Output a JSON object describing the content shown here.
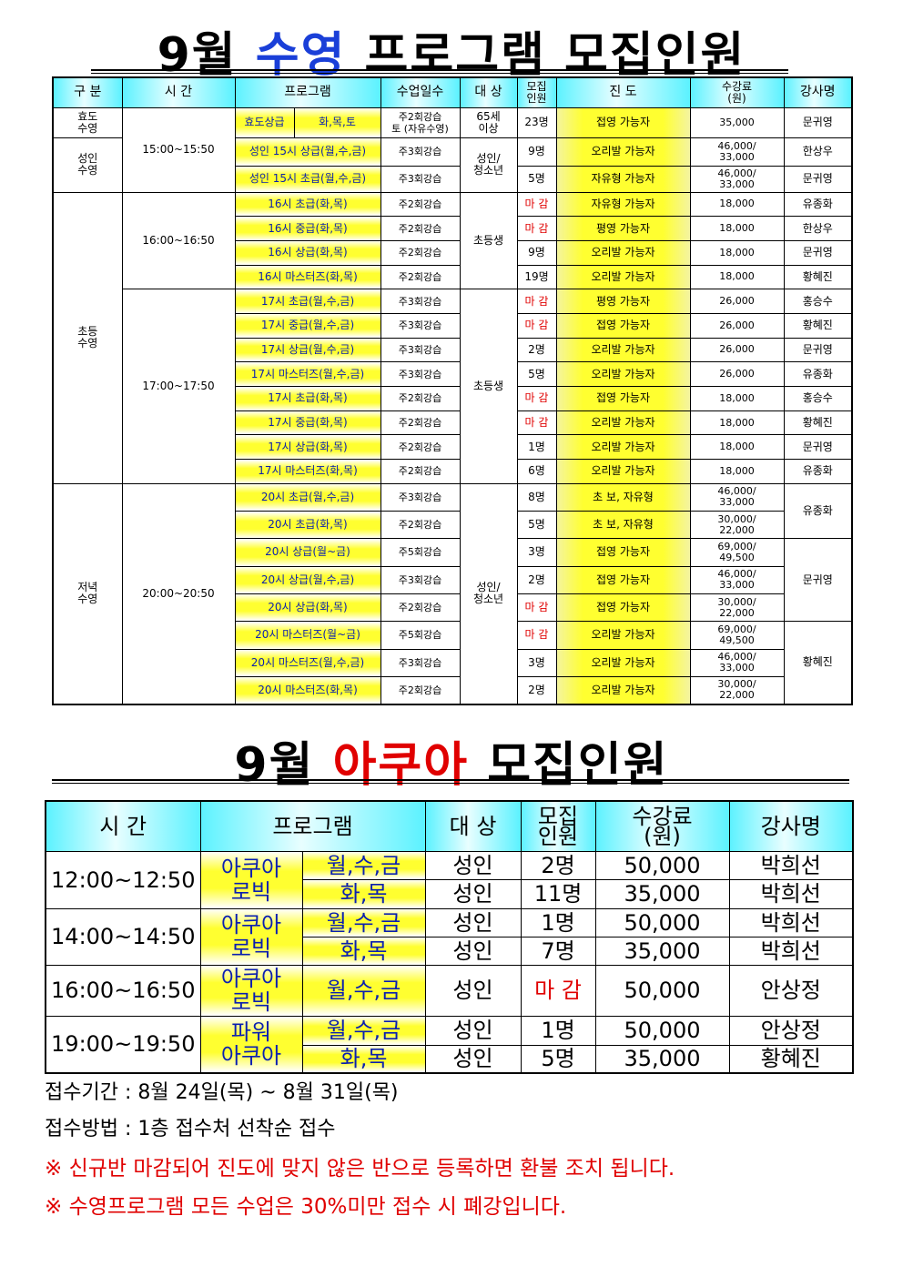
{
  "title1": {
    "month": "9월",
    "highlight": "수영",
    "rest": "프로그램 모집인원",
    "highlight_color": "#1a3fd8"
  },
  "swim_table": {
    "headers": [
      "구 분",
      "시 간",
      "프로그램",
      "수업일수",
      "대 상",
      "모집\n인원",
      "진 도",
      "수강료\n(원)",
      "강사명"
    ],
    "rows": [
      {
        "category": "효도\n수영",
        "time": "15:00~15:50",
        "program": "효도상급",
        "program_days": "화,목,토",
        "days": "주2회강습\n토 (자유수영)",
        "target": "65세\n이상",
        "count": "23명",
        "progress": "접영 가능자",
        "fee": "35,000",
        "instructor": "문귀영"
      },
      {
        "category": "성인\n수영",
        "time": null,
        "program": "성인 15시 상급(월,수,금)",
        "days": "주3회강습",
        "target": "성인/\n청소년",
        "count": "9명",
        "progress": "오리발 가능자",
        "fee": "46,000/\n33,000",
        "instructor": "한상우"
      },
      {
        "category": null,
        "time": null,
        "program": "성인 15시 초급(월,수,금)",
        "days": "주3회강습",
        "target": null,
        "count": "5명",
        "progress": "자유형 가능자",
        "fee": "46,000/\n33,000",
        "instructor": "문귀영"
      },
      {
        "category": "초등\n수영",
        "time": "16:00~16:50",
        "program": "16시 초급(화,목)",
        "days": "주2회강습",
        "target": "초등생",
        "count": "마 감",
        "progress": "자유형 가능자",
        "fee": "18,000",
        "instructor": "유종화"
      },
      {
        "category": null,
        "time": null,
        "program": "16시 중급(화,목)",
        "days": "주2회강습",
        "target": null,
        "count": "마 감",
        "progress": "평영 가능자",
        "fee": "18,000",
        "instructor": "한상우"
      },
      {
        "category": null,
        "time": null,
        "program": "16시 상급(화,목)",
        "days": "주2회강습",
        "target": null,
        "count": "9명",
        "progress": "오리발 가능자",
        "fee": "18,000",
        "instructor": "문귀영"
      },
      {
        "category": null,
        "time": null,
        "program": "16시 마스터즈(화,목)",
        "days": "주2회강습",
        "target": null,
        "count": "19명",
        "progress": "오리발 가능자",
        "fee": "18,000",
        "instructor": "황혜진"
      },
      {
        "category": null,
        "time": "17:00~17:50",
        "program": "17시 초급(월,수,금)",
        "days": "주3회강습",
        "target": "초등생",
        "count": "마 감",
        "progress": "평영 가능자",
        "fee": "26,000",
        "instructor": "홍승수"
      },
      {
        "category": null,
        "time": null,
        "program": "17시 중급(월,수,금)",
        "days": "주3회강습",
        "target": null,
        "count": "마 감",
        "progress": "접영 가능자",
        "fee": "26,000",
        "instructor": "황혜진"
      },
      {
        "category": null,
        "time": null,
        "program": "17시 상급(월,수,금)",
        "days": "주3회강습",
        "target": null,
        "count": "2명",
        "progress": "오리발 가능자",
        "fee": "26,000",
        "instructor": "문귀영"
      },
      {
        "category": null,
        "time": null,
        "program": "17시 마스터즈(월,수,금)",
        "days": "주3회강습",
        "target": null,
        "count": "5명",
        "progress": "오리발 가능자",
        "fee": "26,000",
        "instructor": "유종화"
      },
      {
        "category": null,
        "time": null,
        "program": "17시 초급(화,목)",
        "days": "주2회강습",
        "target": null,
        "count": "마 감",
        "progress": "접영 가능자",
        "fee": "18,000",
        "instructor": "홍승수"
      },
      {
        "category": null,
        "time": null,
        "program": "17시 중급(화,목)",
        "days": "주2회강습",
        "target": null,
        "count": "마 감",
        "progress": "오리발 가능자",
        "fee": "18,000",
        "instructor": "황혜진"
      },
      {
        "category": null,
        "time": null,
        "program": "17시 상급(화,목)",
        "days": "주2회강습",
        "target": null,
        "count": "1명",
        "progress": "오리발 가능자",
        "fee": "18,000",
        "instructor": "문귀영"
      },
      {
        "category": null,
        "time": null,
        "program": "17시 마스터즈(화,목)",
        "days": "주2회강습",
        "target": null,
        "count": "6명",
        "progress": "오리발 가능자",
        "fee": "18,000",
        "instructor": "유종화"
      },
      {
        "category": "저녁\n수영",
        "time": "20:00~20:50",
        "program": "20시 초급(월,수,금)",
        "days": "주3회강습",
        "target": "성인/\n청소년",
        "count": "8명",
        "progress": "초 보, 자유형",
        "fee": "46,000/\n33,000",
        "instructor": "유종화"
      },
      {
        "category": null,
        "time": null,
        "program": "20시 초급(화,목)",
        "days": "주2회강습",
        "target": null,
        "count": "5명",
        "progress": "초 보, 자유형",
        "fee": "30,000/\n22,000",
        "instructor": null
      },
      {
        "category": null,
        "time": null,
        "program": "20시 상급(월~금)",
        "days": "주5회강습",
        "target": null,
        "count": "3명",
        "progress": "접영 가능자",
        "fee": "69,000/\n49,500",
        "instructor": "문귀영"
      },
      {
        "category": null,
        "time": null,
        "program": "20시 상급(월,수,금)",
        "days": "주3회강습",
        "target": null,
        "count": "2명",
        "progress": "접영 가능자",
        "fee": "46,000/\n33,000",
        "instructor": null
      },
      {
        "category": null,
        "time": null,
        "program": "20시 상급(화,목)",
        "days": "주2회강습",
        "target": null,
        "count": "마 감",
        "progress": "접영 가능자",
        "fee": "30,000/\n22,000",
        "instructor": null
      },
      {
        "category": null,
        "time": null,
        "program": "20시 마스터즈(월~금)",
        "days": "주5회강습",
        "target": null,
        "count": "마 감",
        "progress": "오리발 가능자",
        "fee": "69,000/\n49,500",
        "instructor": "황혜진"
      },
      {
        "category": null,
        "time": null,
        "program": "20시 마스터즈(월,수,금)",
        "days": "주3회강습",
        "target": null,
        "count": "3명",
        "progress": "오리발 가능자",
        "fee": "46,000/\n33,000",
        "instructor": null
      },
      {
        "category": null,
        "time": null,
        "program": "20시 마스터즈(화,목)",
        "days": "주2회강습",
        "target": null,
        "count": "2명",
        "progress": "오리발 가능자",
        "fee": "30,000/\n22,000",
        "instructor": null
      }
    ]
  },
  "title2": {
    "month": "9월",
    "highlight": "아쿠아",
    "rest": "모집인원",
    "highlight_color": "#e00000"
  },
  "aqua_table": {
    "headers": [
      "시   간",
      "프로그램",
      "대 상",
      "모집\n인원",
      "수강료\n(원)",
      "강사명"
    ],
    "rows": [
      {
        "time": "12:00~12:50",
        "program": "아쿠아\n로빅",
        "days": "월,수,금",
        "target": "성인",
        "count": "2명",
        "fee": "50,000",
        "instructor": "박희선"
      },
      {
        "time": null,
        "program": null,
        "days": "화,목",
        "target": "성인",
        "count": "11명",
        "fee": "35,000",
        "instructor": "박희선"
      },
      {
        "time": "14:00~14:50",
        "program": "아쿠아\n로빅",
        "days": "월,수,금",
        "target": "성인",
        "count": "1명",
        "fee": "50,000",
        "instructor": "박희선"
      },
      {
        "time": null,
        "program": null,
        "days": "화,목",
        "target": "성인",
        "count": "7명",
        "fee": "35,000",
        "instructor": "박희선"
      },
      {
        "time": "16:00~16:50",
        "program": "아쿠아\n로빅",
        "days": "월,수,금",
        "target": "성인",
        "count": "마 감",
        "fee": "50,000",
        "instructor": "안상정"
      },
      {
        "time": "19:00~19:50",
        "program": "파워\n아쿠아",
        "days": "월,수,금",
        "target": "성인",
        "count": "1명",
        "fee": "50,000",
        "instructor": "안상정"
      },
      {
        "time": null,
        "program": null,
        "days": "화,목",
        "target": "성인",
        "count": "5명",
        "fee": "35,000",
        "instructor": "황혜진"
      }
    ]
  },
  "notes": {
    "period": "접수기간 : 8월 24일(목) ~ 8월 31일(목)",
    "method": "접수방법 : 1층 접수처 선착순 접수",
    "warning1": "※ 신규반 마감되어 진도에 맞지 않은 반으로 등록하면 환불 조치 됩니다.",
    "warning2": "※ 수영프로그램 모든 수업은 30%미만 접수 시 폐강입니다."
  },
  "closed_label": "마 감",
  "colors": {
    "header": "#5cf2ff",
    "program": "#ffff30",
    "closed": "#e00000"
  }
}
